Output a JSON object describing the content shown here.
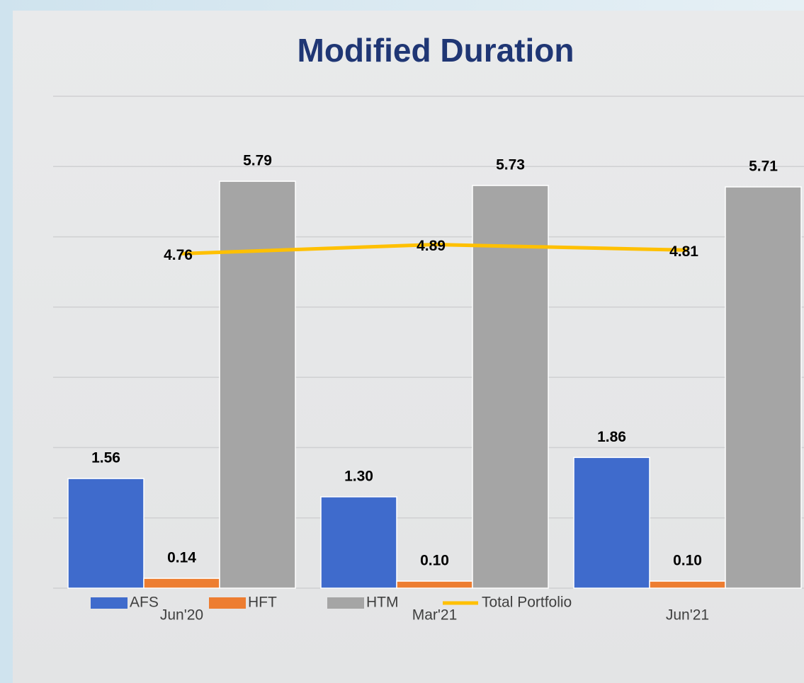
{
  "chart_data": {
    "type": "bar",
    "title": "Modified Duration",
    "categories": [
      "Jun'20",
      "Mar'21",
      "Jun'21"
    ],
    "series": [
      {
        "name": "AFS",
        "type": "bar",
        "color": "#3f6bcc",
        "values": [
          1.56,
          1.3,
          1.86
        ],
        "value_labels": [
          "1.56",
          "1.30",
          "1.86"
        ]
      },
      {
        "name": "HFT",
        "type": "bar",
        "color": "#ed7d31",
        "values": [
          0.14,
          0.1,
          0.1
        ],
        "value_labels": [
          "0.14",
          "0.10",
          "0.10"
        ]
      },
      {
        "name": "HTM",
        "type": "bar",
        "color": "#a5a5a5",
        "values": [
          5.79,
          5.73,
          5.71
        ],
        "value_labels": [
          "5.79",
          "5.73",
          "5.71"
        ]
      },
      {
        "name": "Total Portfolio",
        "type": "line",
        "color": "#ffc000",
        "values": [
          4.76,
          4.89,
          4.81
        ],
        "value_labels": [
          "4.76",
          "4.89",
          "4.81"
        ]
      }
    ],
    "ylim": [
      0,
      7
    ],
    "yticks": [
      0,
      1,
      2,
      3,
      4,
      5,
      6,
      7
    ],
    "grid": true,
    "legend": "bottom"
  }
}
